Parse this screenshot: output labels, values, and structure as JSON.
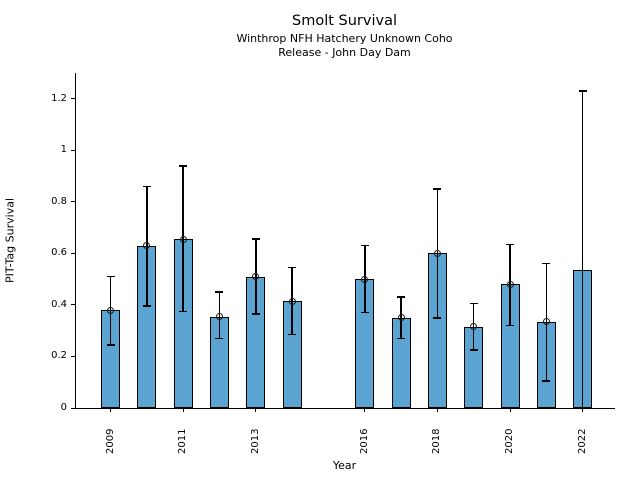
{
  "chart_data": {
    "type": "bar",
    "title": "Smolt Survival",
    "subtitle1": "Winthrop NFH Hatchery Unknown Coho",
    "subtitle2": "Release - John Day Dam",
    "xlabel": "Year",
    "ylabel": "PIT-Tag Survival",
    "bar_color": "#5BA4D1",
    "bar_edge_color": "#000000",
    "errorbar_color": "#000000",
    "marker_style": "open-circle",
    "grid": false,
    "legend": false,
    "xlim": [
      2008.05,
      2022.89
    ],
    "ylim": [
      0,
      1.3
    ],
    "yticks": {
      "values": [
        0,
        0.2,
        0.4,
        0.6,
        0.8,
        1.0,
        1.2
      ],
      "labels": [
        "0",
        "0.2",
        "0.4",
        "0.6",
        "0.8",
        "1",
        "1.2"
      ]
    },
    "xticks": {
      "years": [
        2009,
        2011,
        2013,
        2016,
        2018,
        2020,
        2022
      ],
      "labels": [
        "2009",
        "2011",
        "2013",
        "2016",
        "2018",
        "2020",
        "2022"
      ]
    },
    "points": [
      {
        "year": 2009,
        "value": 0.38,
        "ci_low": 0.245,
        "ci_high": 0.51,
        "marker": true
      },
      {
        "year": 2010,
        "value": 0.63,
        "ci_low": 0.395,
        "ci_high": 0.86,
        "marker": true
      },
      {
        "year": 2011,
        "value": 0.655,
        "ci_low": 0.375,
        "ci_high": 0.94,
        "marker": true
      },
      {
        "year": 2012,
        "value": 0.355,
        "ci_low": 0.27,
        "ci_high": 0.45,
        "marker": true
      },
      {
        "year": 2013,
        "value": 0.51,
        "ci_low": 0.365,
        "ci_high": 0.655,
        "marker": true
      },
      {
        "year": 2014,
        "value": 0.415,
        "ci_low": 0.285,
        "ci_high": 0.545,
        "marker": true
      },
      {
        "year": 2016,
        "value": 0.5,
        "ci_low": 0.37,
        "ci_high": 0.63,
        "marker": true
      },
      {
        "year": 2017,
        "value": 0.35,
        "ci_low": 0.27,
        "ci_high": 0.43,
        "marker": true
      },
      {
        "year": 2018,
        "value": 0.6,
        "ci_low": 0.35,
        "ci_high": 0.85,
        "marker": true
      },
      {
        "year": 2019,
        "value": 0.315,
        "ci_low": 0.225,
        "ci_high": 0.405,
        "marker": true
      },
      {
        "year": 2020,
        "value": 0.48,
        "ci_low": 0.32,
        "ci_high": 0.635,
        "marker": true
      },
      {
        "year": 2021,
        "value": 0.335,
        "ci_low": 0.105,
        "ci_high": 0.56,
        "marker": true
      },
      {
        "year": 2022,
        "value": 0.535,
        "ci_low": 0.0,
        "ci_high": 1.23,
        "marker": false
      }
    ]
  }
}
